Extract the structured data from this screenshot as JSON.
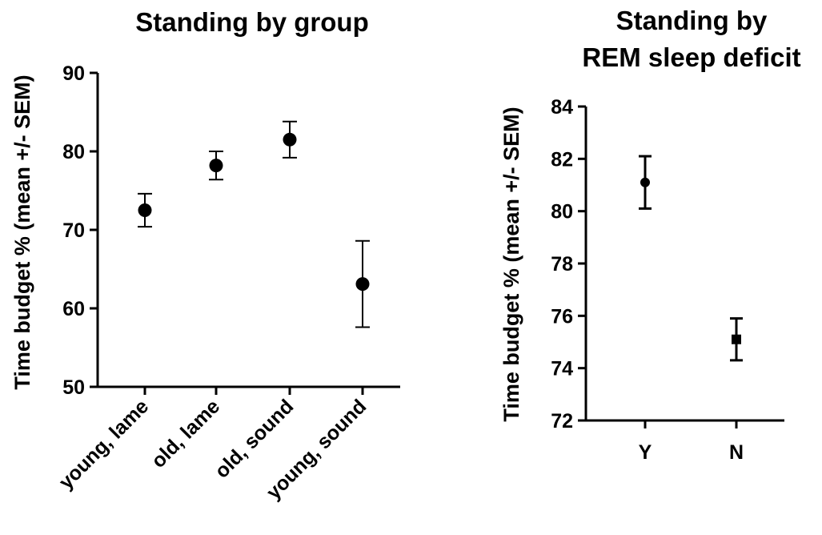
{
  "chart_data": [
    {
      "type": "scatter",
      "title": "Standing by group",
      "xlabel": "",
      "ylabel": "Time budget % (mean +/- SEM)",
      "categories": [
        "young, lame",
        "old, lame",
        "old, sound",
        "young, sound"
      ],
      "means": [
        72.5,
        78.2,
        81.5,
        63.1
      ],
      "sem": [
        2.1,
        1.8,
        2.3,
        5.5
      ],
      "ylim": [
        50,
        90
      ],
      "yticks": [
        50,
        60,
        70,
        80,
        90
      ],
      "marker": "circle",
      "grid": false
    },
    {
      "type": "scatter",
      "title_lines": [
        "Standing by",
        "REM sleep deficit"
      ],
      "xlabel": "",
      "ylabel": "Time budget % (mean +/- SEM)",
      "categories": [
        "Y",
        "N"
      ],
      "means": [
        81.1,
        75.1
      ],
      "sem": [
        1.0,
        0.8
      ],
      "ylim": [
        72,
        84
      ],
      "yticks": [
        72,
        74,
        76,
        78,
        80,
        82,
        84
      ],
      "markers": [
        "circle",
        "square"
      ],
      "grid": false
    }
  ]
}
